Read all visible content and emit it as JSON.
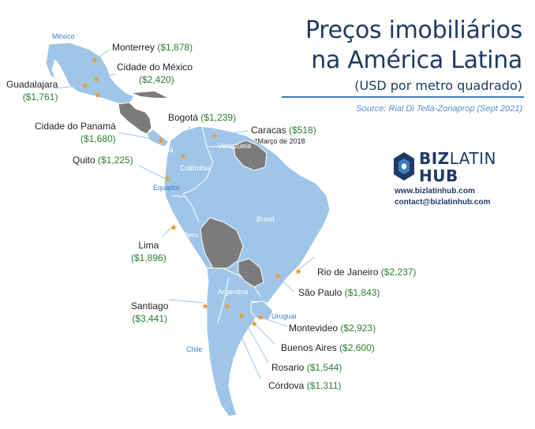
{
  "title": {
    "line1": "Preços imobiliários",
    "line2": "na América Latina",
    "subtitle": "(USD por metro quadrado)"
  },
  "source": "Source: Rial Di Tella-Zonaprop (Sept 2021)",
  "logo": {
    "biz": "BIZ",
    "latin": "LATIN",
    "hub": "HUB"
  },
  "contact": {
    "website": "www.bizlatinhub.com",
    "email": "contact@bizlatinhub.com"
  },
  "colors": {
    "land_light": "#9fc6e9",
    "land_dark": "#7b7b7b",
    "marker": "#f29a20",
    "title": "#1f3a63",
    "price": "#2e7d32"
  },
  "cities": [
    {
      "name": "Monterrey",
      "price": "($1,878)"
    },
    {
      "name": "Cidade do México",
      "price": "($2,420)"
    },
    {
      "name": "Guadalajara",
      "price": "($1,761)"
    },
    {
      "name": "Bogotá",
      "price": "($1,239)"
    },
    {
      "name": "Caracas",
      "price": "($518)"
    },
    {
      "name": "Cidade do Panamá",
      "price": "($1,680)"
    },
    {
      "name": "Quito",
      "price": "($1,225)"
    },
    {
      "name": "Lima",
      "price": "($1,896)"
    },
    {
      "name": "Rio de Janeiro",
      "price": "($2,237)"
    },
    {
      "name": "São Paulo",
      "price": "($1,843)"
    },
    {
      "name": "Santiago",
      "price": "($3,441)"
    },
    {
      "name": "Montevideo",
      "price": "($2,923)"
    },
    {
      "name": "Buenos Aires",
      "price": "($2,600)"
    },
    {
      "name": "Rosario",
      "price": "($1,544)"
    },
    {
      "name": "Córdova",
      "price": "($1,311)"
    }
  ],
  "note": "*Março de 2018",
  "countries": {
    "mexico": "México",
    "panama": "Panamá",
    "colombia": "Colômbia",
    "venezuela": "Venezuela",
    "ecuador": "Equador",
    "peru": "Peru",
    "brasil": "Brasil",
    "argentina": "Argentina",
    "uruguai": "Uruguai",
    "chile": "Chile"
  }
}
